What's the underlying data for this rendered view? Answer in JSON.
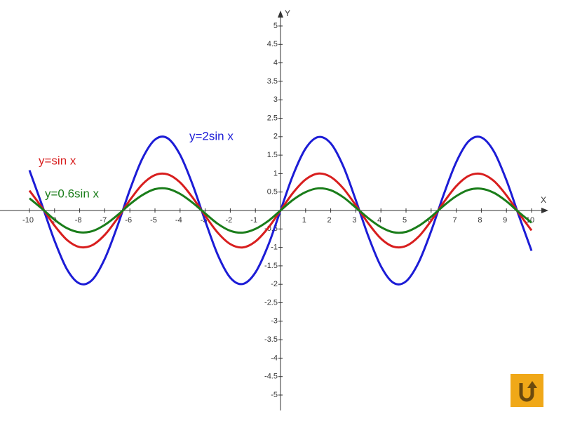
{
  "chart_data": {
    "type": "line",
    "x": [
      -10,
      -9.5,
      -9,
      -8.5,
      -8,
      -7.5,
      -7,
      -6.5,
      -6,
      -5.5,
      -5,
      -4.5,
      -4,
      -3.5,
      -3,
      -2.5,
      -2,
      -1.5,
      -1,
      -0.5,
      0,
      0.5,
      1,
      1.5,
      2,
      2.5,
      3,
      3.5,
      4,
      4.5,
      5,
      5.5,
      6,
      6.5,
      7,
      7.5,
      8,
      8.5,
      9,
      9.5,
      10
    ],
    "series": [
      {
        "name": "y=2sin x",
        "color": "#1c1cd6",
        "values": [
          1.09,
          0.15,
          -0.82,
          -1.6,
          -1.98,
          -1.88,
          -1.31,
          -0.43,
          0.56,
          1.41,
          1.92,
          1.96,
          1.51,
          0.7,
          -0.28,
          -1.2,
          -1.82,
          -1.99,
          -1.68,
          -0.96,
          0,
          0.96,
          1.68,
          1.99,
          1.82,
          1.2,
          0.28,
          -0.7,
          -1.51,
          -1.96,
          -1.92,
          -1.41,
          -0.56,
          0.43,
          1.31,
          1.88,
          1.98,
          1.6,
          0.82,
          -0.15,
          -1.09
        ]
      },
      {
        "name": "y=sin x",
        "color": "#d81e1e",
        "values": [
          0.54,
          0.08,
          -0.41,
          -0.8,
          -0.99,
          -0.94,
          -0.66,
          -0.22,
          0.28,
          0.71,
          0.96,
          0.98,
          0.76,
          0.35,
          -0.14,
          -0.6,
          -0.91,
          -1,
          -0.84,
          -0.48,
          0,
          0.48,
          0.84,
          1,
          0.91,
          0.6,
          0.14,
          -0.35,
          -0.76,
          -0.98,
          -0.96,
          -0.71,
          -0.28,
          0.22,
          0.66,
          0.94,
          0.99,
          0.8,
          0.41,
          -0.08,
          -0.54
        ]
      },
      {
        "name": "y=0.6sin x",
        "color": "#1a7d1a",
        "values": [
          0.33,
          0.05,
          -0.25,
          -0.48,
          -0.59,
          -0.56,
          -0.39,
          -0.13,
          0.17,
          0.42,
          0.58,
          0.59,
          0.45,
          0.21,
          -0.08,
          -0.36,
          -0.55,
          -0.6,
          -0.5,
          -0.29,
          0,
          0.29,
          0.5,
          0.6,
          0.55,
          0.36,
          0.08,
          -0.21,
          -0.45,
          -0.59,
          -0.58,
          -0.42,
          -0.17,
          0.13,
          0.39,
          0.56,
          0.59,
          0.48,
          0.25,
          -0.05,
          -0.33
        ]
      }
    ],
    "x_label": "X",
    "y_label": "Y",
    "xlim": [
      -10,
      10
    ],
    "ylim": [
      -5,
      5
    ],
    "xticks": [
      -10,
      -9,
      -8,
      -7,
      -6,
      -5,
      -4,
      -3,
      -2,
      -1,
      1,
      2,
      3,
      4,
      5,
      6,
      7,
      8,
      9,
      10
    ],
    "yticks": [
      5,
      4.5,
      4,
      3.5,
      3,
      2.5,
      2,
      1.5,
      1,
      0.5,
      -0.5,
      -1,
      -1.5,
      -2,
      -2.5,
      -3,
      -3.5,
      -4,
      -4.5,
      -5
    ]
  }
}
